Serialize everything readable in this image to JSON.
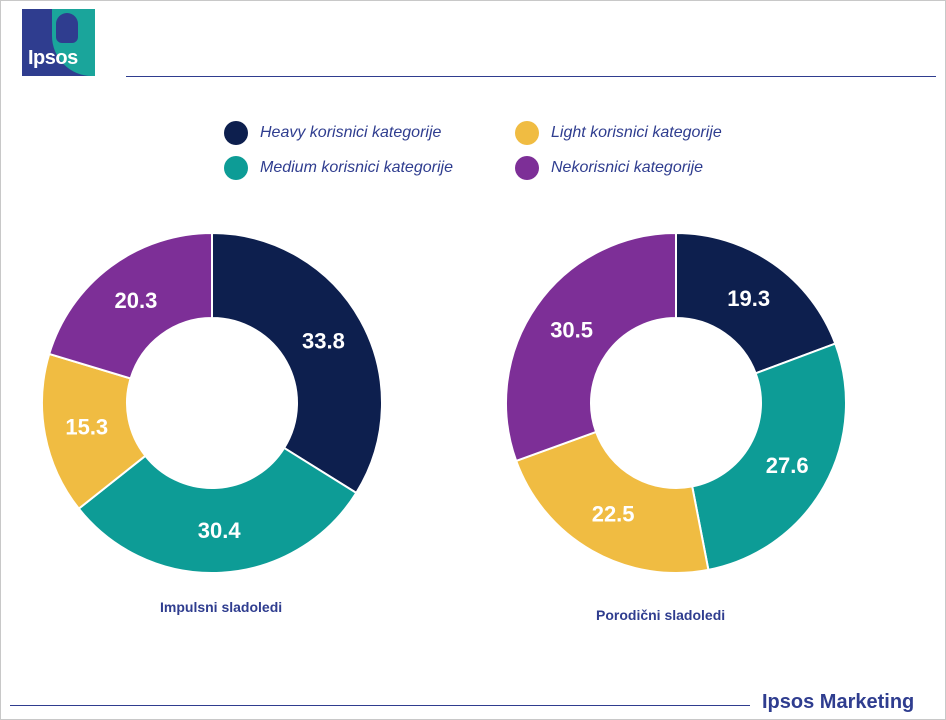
{
  "logo": {
    "text": "Ipsos"
  },
  "legend": [
    {
      "label": "Heavy korisnici kategorije",
      "color": "#0d1f4e"
    },
    {
      "label": "Light korisnici kategorije",
      "color": "#f0bc42"
    },
    {
      "label": "Medium korisnici kategorije",
      "color": "#0d9c96"
    },
    {
      "label": "Nekorisnici kategorije",
      "color": "#7d2f97"
    }
  ],
  "chart_data": [
    {
      "type": "pie",
      "title": "Impulsni sladoledi",
      "slices": [
        {
          "name": "Heavy korisnici kategorije",
          "value": 33.8,
          "color": "#0d1f4e"
        },
        {
          "name": "Medium korisnici kategorije",
          "value": 30.4,
          "color": "#0d9c96"
        },
        {
          "name": "Light korisnici kategorije",
          "value": 15.3,
          "color": "#f0bc42"
        },
        {
          "name": "Nekorisnici kategorije",
          "value": 20.3,
          "color": "#7d2f97"
        }
      ]
    },
    {
      "type": "pie",
      "title": "Porodični sladoledi",
      "slices": [
        {
          "name": "Heavy korisnici kategorije",
          "value": 19.3,
          "color": "#0d1f4e"
        },
        {
          "name": "Medium korisnici kategorije",
          "value": 27.6,
          "color": "#0d9c96"
        },
        {
          "name": "Light korisnici kategorije",
          "value": 22.5,
          "color": "#f0bc42"
        },
        {
          "name": "Nekorisnici kategorije",
          "value": 30.5,
          "color": "#7d2f97"
        }
      ]
    }
  ],
  "footer": {
    "brand": "Ipsos Marketing"
  }
}
